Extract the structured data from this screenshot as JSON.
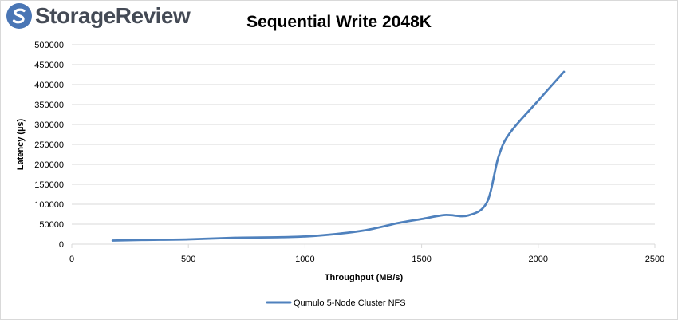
{
  "logo": {
    "text": "StorageReview",
    "icon": "storagereview-logo-icon",
    "brand_color": "#4a76b5"
  },
  "chart_data": {
    "type": "line",
    "title": "Sequential Write 2048K",
    "xlabel": "Throughput (MB/s)",
    "ylabel": "Latency (µs)",
    "xlim": [
      0,
      2500
    ],
    "ylim": [
      0,
      500000
    ],
    "x_ticks": [
      0,
      500,
      1000,
      1500,
      2000,
      2500
    ],
    "y_ticks": [
      0,
      50000,
      100000,
      150000,
      200000,
      250000,
      300000,
      350000,
      400000,
      450000,
      500000
    ],
    "grid": true,
    "legend_position": "bottom",
    "series": [
      {
        "name": "Qumulo 5-Node Cluster NFS",
        "color": "#4f81bd",
        "x": [
          175,
          300,
          500,
          700,
          900,
          1050,
          1250,
          1400,
          1500,
          1600,
          1700,
          1780,
          1830,
          1880,
          2000,
          2110
        ],
        "y": [
          9000,
          10500,
          12000,
          16000,
          17500,
          21000,
          34000,
          53000,
          63000,
          73000,
          72000,
          105000,
          220000,
          280000,
          360000,
          432000
        ]
      }
    ]
  }
}
